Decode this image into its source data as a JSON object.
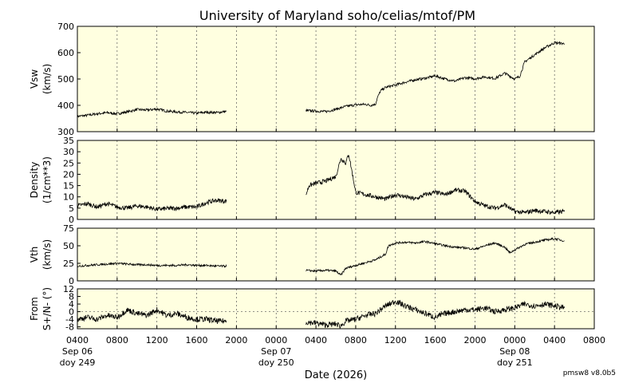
{
  "chart_data": {
    "type": "line",
    "title": "University of Maryland  soho/celias/mtof/PM",
    "xlabel": "Date (2026)",
    "version": "pmsw8 v8.0b5",
    "xlim": [
      4,
      56
    ],
    "x_ticks": [
      {
        "x": 4,
        "lines": [
          "0400",
          "Sep 06",
          "doy 249"
        ]
      },
      {
        "x": 8,
        "lines": [
          "0800"
        ]
      },
      {
        "x": 12,
        "lines": [
          "1200"
        ]
      },
      {
        "x": 16,
        "lines": [
          "1600"
        ]
      },
      {
        "x": 20,
        "lines": [
          "2000"
        ]
      },
      {
        "x": 24,
        "lines": [
          "0000",
          "Sep 07",
          "doy 250"
        ]
      },
      {
        "x": 28,
        "lines": [
          "0400"
        ]
      },
      {
        "x": 32,
        "lines": [
          "0800"
        ]
      },
      {
        "x": 36,
        "lines": [
          "1200"
        ]
      },
      {
        "x": 40,
        "lines": [
          "1600"
        ]
      },
      {
        "x": 44,
        "lines": [
          "2000"
        ]
      },
      {
        "x": 48,
        "lines": [
          "0000",
          "Sep 08",
          "doy 251"
        ]
      },
      {
        "x": 52,
        "lines": [
          "0400"
        ]
      },
      {
        "x": 56,
        "lines": [
          "0800"
        ]
      }
    ],
    "panels": [
      {
        "id": "vsw",
        "ylabel": [
          "Vsw",
          "(km/s)"
        ],
        "ylim": [
          300,
          700
        ],
        "yticks": [
          300,
          400,
          500,
          600,
          700
        ],
        "noise": 5,
        "segments": [
          [
            [
              4.0,
              358
            ],
            [
              5.0,
              362
            ],
            [
              6.0,
              368
            ],
            [
              7.0,
              372
            ],
            [
              8.0,
              368
            ],
            [
              9.0,
              375
            ],
            [
              10.0,
              384
            ],
            [
              11.0,
              382
            ],
            [
              12.0,
              386
            ],
            [
              13.0,
              378
            ],
            [
              14.0,
              375
            ],
            [
              15.0,
              373
            ],
            [
              16.0,
              370
            ],
            [
              17.0,
              374
            ],
            [
              18.0,
              372
            ],
            [
              19.0,
              377
            ]
          ],
          [
            [
              27.0,
              380
            ],
            [
              28.0,
              378
            ],
            [
              29.0,
              376
            ],
            [
              30.0,
              385
            ],
            [
              31.0,
              396
            ],
            [
              32.0,
              402
            ],
            [
              33.0,
              404
            ],
            [
              33.5,
              400
            ],
            [
              34.0,
              405
            ],
            [
              34.2,
              430
            ],
            [
              34.5,
              455
            ],
            [
              35.0,
              468
            ],
            [
              36.0,
              477
            ],
            [
              37.0,
              488
            ],
            [
              38.0,
              497
            ],
            [
              39.0,
              503
            ],
            [
              40.0,
              512
            ],
            [
              41.0,
              500
            ],
            [
              42.0,
              492
            ],
            [
              43.0,
              505
            ],
            [
              44.0,
              501
            ],
            [
              45.0,
              508
            ],
            [
              46.0,
              502
            ],
            [
              47.0,
              522
            ],
            [
              48.0,
              500
            ],
            [
              48.5,
              510
            ],
            [
              49.0,
              565
            ],
            [
              50.0,
              592
            ],
            [
              51.0,
              618
            ],
            [
              52.0,
              638
            ],
            [
              53.0,
              634
            ]
          ]
        ]
      },
      {
        "id": "density",
        "ylabel": [
          "Density",
          "(1/cm**3)"
        ],
        "ylim": [
          0,
          35
        ],
        "yticks": [
          0,
          5,
          10,
          15,
          20,
          25,
          30,
          35
        ],
        "noise": 1.0,
        "segments": [
          [
            [
              4.0,
              6
            ],
            [
              5.0,
              7
            ],
            [
              6.0,
              5.5
            ],
            [
              7.0,
              7
            ],
            [
              8.0,
              5.5
            ],
            [
              9.0,
              5
            ],
            [
              10.0,
              6
            ],
            [
              11.0,
              5.5
            ],
            [
              12.0,
              4.5
            ],
            [
              13.0,
              4.8
            ],
            [
              14.0,
              5
            ],
            [
              15.0,
              5.5
            ],
            [
              16.0,
              5.5
            ],
            [
              17.0,
              7.5
            ],
            [
              18.0,
              8.5
            ],
            [
              19.0,
              8
            ]
          ],
          [
            [
              27.0,
              11
            ],
            [
              27.3,
              15
            ],
            [
              28.0,
              16
            ],
            [
              29.0,
              17
            ],
            [
              30.0,
              19
            ],
            [
              30.5,
              27
            ],
            [
              31.0,
              25
            ],
            [
              31.3,
              29
            ],
            [
              31.8,
              17
            ],
            [
              32.0,
              12
            ],
            [
              33.0,
              11
            ],
            [
              34.0,
              10
            ],
            [
              35.0,
              9
            ],
            [
              36.0,
              11
            ],
            [
              37.0,
              10
            ],
            [
              38.0,
              9
            ],
            [
              39.0,
              11
            ],
            [
              40.0,
              12
            ],
            [
              41.0,
              11
            ],
            [
              42.0,
              13
            ],
            [
              43.0,
              12.5
            ],
            [
              44.0,
              8
            ],
            [
              45.0,
              6
            ],
            [
              46.0,
              5
            ],
            [
              47.0,
              6.5
            ],
            [
              48.0,
              3.5
            ],
            [
              49.0,
              3
            ],
            [
              50.0,
              4
            ],
            [
              51.0,
              3.5
            ],
            [
              52.0,
              3
            ],
            [
              53.0,
              3.5
            ]
          ]
        ]
      },
      {
        "id": "vth",
        "ylabel": [
          "Vth",
          "(km/s)"
        ],
        "ylim": [
          0,
          75
        ],
        "yticks": [
          0,
          25,
          50,
          75
        ],
        "noise": 1.5,
        "segments": [
          [
            [
              4.0,
              21
            ],
            [
              5.0,
              22
            ],
            [
              6.0,
              23
            ],
            [
              7.0,
              24
            ],
            [
              8.0,
              25
            ],
            [
              9.0,
              24
            ],
            [
              10.0,
              23
            ],
            [
              11.0,
              23
            ],
            [
              12.0,
              22
            ],
            [
              13.0,
              22
            ],
            [
              14.0,
              22
            ],
            [
              15.0,
              23
            ],
            [
              16.0,
              22
            ],
            [
              17.0,
              22
            ],
            [
              18.0,
              21
            ],
            [
              19.0,
              21
            ]
          ],
          [
            [
              27.0,
              15
            ],
            [
              28.0,
              14
            ],
            [
              29.0,
              15
            ],
            [
              30.0,
              14
            ],
            [
              30.5,
              8
            ],
            [
              31.0,
              18
            ],
            [
              32.0,
              22
            ],
            [
              33.0,
              26
            ],
            [
              34.0,
              30
            ],
            [
              35.0,
              38
            ],
            [
              35.3,
              50
            ],
            [
              36.0,
              54
            ],
            [
              37.0,
              55
            ],
            [
              38.0,
              54
            ],
            [
              39.0,
              56
            ],
            [
              40.0,
              53
            ],
            [
              41.0,
              50
            ],
            [
              42.0,
              48
            ],
            [
              43.0,
              47
            ],
            [
              44.0,
              45
            ],
            [
              45.0,
              50
            ],
            [
              46.0,
              54
            ],
            [
              47.0,
              48
            ],
            [
              47.5,
              40
            ],
            [
              48.0,
              44
            ],
            [
              49.0,
              52
            ],
            [
              50.0,
              55
            ],
            [
              51.0,
              58
            ],
            [
              52.0,
              60
            ],
            [
              53.0,
              57
            ]
          ]
        ]
      },
      {
        "id": "from",
        "ylabel": [
          "From",
          "S+/N- (°)"
        ],
        "ylim": [
          -9,
          12
        ],
        "yticks": [
          -8,
          -4,
          0,
          4,
          8,
          12
        ],
        "zero_line": true,
        "noise": 1.5,
        "segments": [
          [
            [
              4.0,
              -4
            ],
            [
              5.0,
              -3
            ],
            [
              6.0,
              -4
            ],
            [
              7.0,
              -2
            ],
            [
              8.0,
              -3
            ],
            [
              9.0,
              1
            ],
            [
              10.0,
              -1
            ],
            [
              11.0,
              -2
            ],
            [
              12.0,
              1
            ],
            [
              13.0,
              -2
            ],
            [
              14.0,
              -1
            ],
            [
              15.0,
              -3
            ],
            [
              16.0,
              -4
            ],
            [
              17.0,
              -4
            ],
            [
              18.0,
              -5
            ],
            [
              19.0,
              -5
            ]
          ],
          [
            [
              27.0,
              -5.5
            ],
            [
              28.0,
              -6
            ],
            [
              29.0,
              -7
            ],
            [
              30.0,
              -6.5
            ],
            [
              30.5,
              -7.5
            ],
            [
              31.0,
              -5
            ],
            [
              32.0,
              -4
            ],
            [
              33.0,
              -2
            ],
            [
              34.0,
              -1
            ],
            [
              35.0,
              3
            ],
            [
              36.0,
              5.5
            ],
            [
              37.0,
              3
            ],
            [
              38.0,
              1
            ],
            [
              39.0,
              -1
            ],
            [
              40.0,
              -3
            ],
            [
              41.0,
              -1
            ],
            [
              42.0,
              0
            ],
            [
              43.0,
              1
            ],
            [
              44.0,
              1
            ],
            [
              45.0,
              2
            ],
            [
              46.0,
              0
            ],
            [
              47.0,
              1
            ],
            [
              48.0,
              2
            ],
            [
              49.0,
              4
            ],
            [
              50.0,
              3
            ],
            [
              51.0,
              4
            ],
            [
              52.0,
              3
            ],
            [
              53.0,
              2
            ]
          ]
        ]
      }
    ]
  }
}
